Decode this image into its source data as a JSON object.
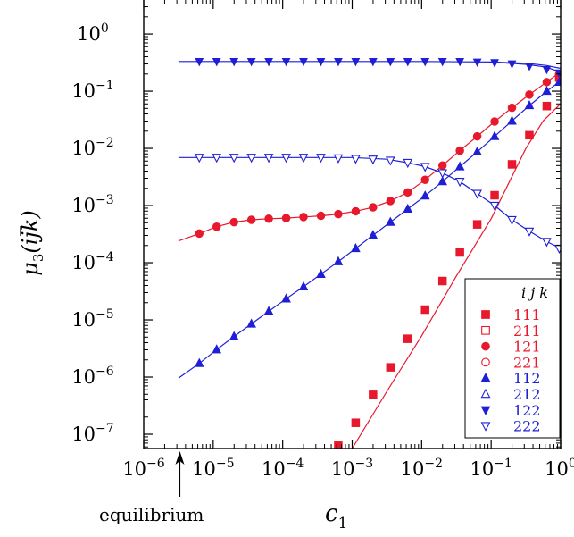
{
  "chart_data": {
    "type": "scatter",
    "scale": {
      "x": "log",
      "y": "log"
    },
    "xlim_exp": [
      -6,
      0
    ],
    "ylim_exp": [
      -7.25,
      0.72
    ],
    "xlabel": {
      "base": "c",
      "sub": "1"
    },
    "ylabel": {
      "mu": "μ",
      "sub": "3",
      "args": "(ijk)"
    },
    "x_ticks": [
      {
        "base": "10",
        "exp": "−6",
        "e": -6
      },
      {
        "base": "10",
        "exp": "−5",
        "e": -5
      },
      {
        "base": "10",
        "exp": "−4",
        "e": -4
      },
      {
        "base": "10",
        "exp": "−3",
        "e": -3
      },
      {
        "base": "10",
        "exp": "−2",
        "e": -2
      },
      {
        "base": "10",
        "exp": "−1",
        "e": -1
      },
      {
        "base": "10",
        "exp": "0",
        "e": 0
      }
    ],
    "y_ticks": [
      {
        "base": "10",
        "exp": "0",
        "e": 0
      },
      {
        "base": "10",
        "exp": "−1",
        "e": -1
      },
      {
        "base": "10",
        "exp": "−2",
        "e": -2
      },
      {
        "base": "10",
        "exp": "−3",
        "e": -3
      },
      {
        "base": "10",
        "exp": "−4",
        "e": -4
      },
      {
        "base": "10",
        "exp": "−5",
        "e": -5
      },
      {
        "base": "10",
        "exp": "−6",
        "e": -6
      },
      {
        "base": "10",
        "exp": "−7",
        "e": -7
      }
    ],
    "annotation": {
      "text": "equilibrium",
      "x_exp": -5.48
    },
    "legend": {
      "title": "i j k",
      "position": "bottom-right"
    },
    "colors": {
      "red": "#e8192c",
      "blue": "#1f1fd6",
      "axis": "#000000"
    },
    "marker_log_x": [
      -5.2,
      -4.95,
      -4.7,
      -4.45,
      -4.2,
      -3.95,
      -3.7,
      -3.45,
      -3.2,
      -2.95,
      -2.7,
      -2.45,
      -2.2,
      -1.95,
      -1.7,
      -1.45,
      -1.2,
      -0.95,
      -0.7,
      -0.45,
      -0.2,
      -0.02
    ],
    "series": [
      {
        "name": "111",
        "marker": "square",
        "fill": "filled",
        "color": "red",
        "log_y": [
          null,
          null,
          null,
          null,
          null,
          null,
          null,
          null,
          -7.2,
          -6.8,
          -6.31,
          -5.83,
          -5.33,
          -4.82,
          -4.32,
          -3.82,
          -3.33,
          -2.82,
          -2.28,
          -1.77,
          -1.26,
          -0.76
        ]
      },
      {
        "name": "211",
        "marker": "square",
        "fill": "open",
        "color": "red",
        "log_y": [
          null,
          null,
          null,
          null,
          null,
          null,
          null,
          null,
          -7.2,
          -6.8,
          -6.31,
          -5.83,
          -5.33,
          -4.82,
          -4.32,
          -3.82,
          -3.33,
          -2.82,
          -2.28,
          -1.77,
          -1.26,
          -0.76
        ]
      },
      {
        "name": "121",
        "marker": "circle",
        "fill": "filled",
        "color": "red",
        "log_y": [
          -3.49,
          -3.37,
          -3.29,
          -3.25,
          -3.23,
          -3.22,
          -3.2,
          -3.18,
          -3.15,
          -3.1,
          -3.03,
          -2.92,
          -2.77,
          -2.55,
          -2.3,
          -2.04,
          -1.79,
          -1.53,
          -1.29,
          -1.06,
          -0.84,
          -0.7
        ]
      },
      {
        "name": "221",
        "marker": "circle",
        "fill": "open",
        "color": "red",
        "log_y": [
          -3.49,
          -3.37,
          -3.29,
          -3.25,
          -3.23,
          -3.22,
          -3.2,
          -3.18,
          -3.15,
          -3.1,
          -3.03,
          -2.92,
          -2.77,
          -2.55,
          -2.3,
          -2.04,
          -1.79,
          -1.53,
          -1.29,
          -1.06,
          -0.84,
          -0.7
        ]
      },
      {
        "name": "112",
        "marker": "triangle-up",
        "fill": "filled",
        "color": "blue",
        "log_y": [
          -5.76,
          -5.52,
          -5.29,
          -5.07,
          -4.85,
          -4.63,
          -4.42,
          -4.2,
          -3.98,
          -3.75,
          -3.52,
          -3.29,
          -3.06,
          -2.83,
          -2.58,
          -2.32,
          -2.06,
          -1.79,
          -1.52,
          -1.25,
          -1.0,
          -0.84
        ]
      },
      {
        "name": "212",
        "marker": "triangle-up",
        "fill": "open",
        "color": "blue",
        "log_y": [
          -5.76,
          -5.52,
          -5.29,
          -5.07,
          -4.85,
          -4.63,
          -4.42,
          -4.2,
          -3.98,
          -3.75,
          -3.52,
          -3.29,
          -3.06,
          -2.83,
          -2.58,
          -2.32,
          -2.06,
          -1.79,
          -1.52,
          -1.25,
          -1.0,
          -0.84
        ]
      },
      {
        "name": "122",
        "marker": "triangle-down",
        "fill": "filled",
        "color": "blue",
        "log_y": [
          -0.48,
          -0.48,
          -0.48,
          -0.48,
          -0.48,
          -0.48,
          -0.48,
          -0.48,
          -0.48,
          -0.48,
          -0.48,
          -0.48,
          -0.48,
          -0.48,
          -0.48,
          -0.48,
          -0.49,
          -0.5,
          -0.52,
          -0.56,
          -0.62,
          -0.68
        ]
      },
      {
        "name": "222",
        "marker": "triangle-down",
        "fill": "open",
        "color": "blue",
        "log_y": [
          -2.16,
          -2.16,
          -2.16,
          -2.16,
          -2.16,
          -2.16,
          -2.16,
          -2.16,
          -2.17,
          -2.18,
          -2.19,
          -2.21,
          -2.25,
          -2.32,
          -2.43,
          -2.58,
          -2.79,
          -3.0,
          -3.25,
          -3.45,
          -3.63,
          -3.75
        ]
      }
    ],
    "curves": [
      {
        "name": "curve-111",
        "color": "red",
        "log_x": [
          -3.0,
          -2.5,
          -2.0,
          -1.5,
          -1.0,
          -0.5,
          -0.25,
          0.0
        ],
        "log_y": [
          -7.25,
          -6.25,
          -5.28,
          -4.23,
          -3.23,
          -2.0,
          -1.52,
          -1.22
        ]
      },
      {
        "name": "curve-121",
        "color": "red",
        "log_x": [
          -5.5,
          -5.2,
          -4.95,
          -4.7,
          -4.45,
          -4.2,
          -3.95,
          -3.7,
          -3.45,
          -3.2,
          -2.95,
          -2.7,
          -2.45,
          -2.2,
          -1.95,
          -1.7,
          -1.45,
          -1.2,
          -0.95,
          -0.7,
          -0.45,
          -0.2,
          0.0
        ],
        "log_y": [
          -3.62,
          -3.49,
          -3.37,
          -3.29,
          -3.25,
          -3.23,
          -3.22,
          -3.2,
          -3.18,
          -3.15,
          -3.1,
          -3.03,
          -2.92,
          -2.77,
          -2.55,
          -2.3,
          -2.04,
          -1.79,
          -1.53,
          -1.29,
          -1.06,
          -0.84,
          -0.66
        ]
      },
      {
        "name": "curve-112",
        "color": "blue",
        "log_x": [
          -5.5,
          -5.2,
          -4.95,
          -4.7,
          -4.45,
          -4.2,
          -3.95,
          -3.7,
          -3.45,
          -3.2,
          -2.95,
          -2.7,
          -2.45,
          -2.2,
          -1.95,
          -1.7,
          -1.45,
          -1.2,
          -0.95,
          -0.7,
          -0.45,
          -0.2,
          0.0
        ],
        "log_y": [
          -6.02,
          -5.76,
          -5.52,
          -5.29,
          -5.07,
          -4.85,
          -4.63,
          -4.42,
          -4.2,
          -3.98,
          -3.75,
          -3.52,
          -3.29,
          -3.06,
          -2.83,
          -2.58,
          -2.32,
          -2.06,
          -1.79,
          -1.52,
          -1.25,
          -1.0,
          -0.82
        ]
      },
      {
        "name": "curve-122",
        "color": "blue",
        "log_x": [
          -5.5,
          -4.0,
          -2.0,
          -1.0,
          -0.5,
          -0.2,
          0.0
        ],
        "log_y": [
          -0.48,
          -0.48,
          -0.48,
          -0.49,
          -0.51,
          -0.55,
          -0.6
        ]
      },
      {
        "name": "curve-122b",
        "color": "blue",
        "log_x": [
          -1.0,
          -0.5,
          -0.2,
          0.0
        ],
        "log_y": [
          -0.49,
          -0.53,
          -0.58,
          -0.67
        ]
      },
      {
        "name": "curve-222",
        "color": "blue",
        "log_x": [
          -5.5,
          -4.0,
          -3.0,
          -2.5,
          -2.2,
          -1.95,
          -1.7,
          -1.45,
          -1.2,
          -0.95,
          -0.7,
          -0.45,
          -0.2,
          0.0
        ],
        "log_y": [
          -2.16,
          -2.16,
          -2.16,
          -2.19,
          -2.25,
          -2.32,
          -2.43,
          -2.58,
          -2.79,
          -3.0,
          -3.25,
          -3.45,
          -3.63,
          -3.75
        ]
      }
    ]
  }
}
